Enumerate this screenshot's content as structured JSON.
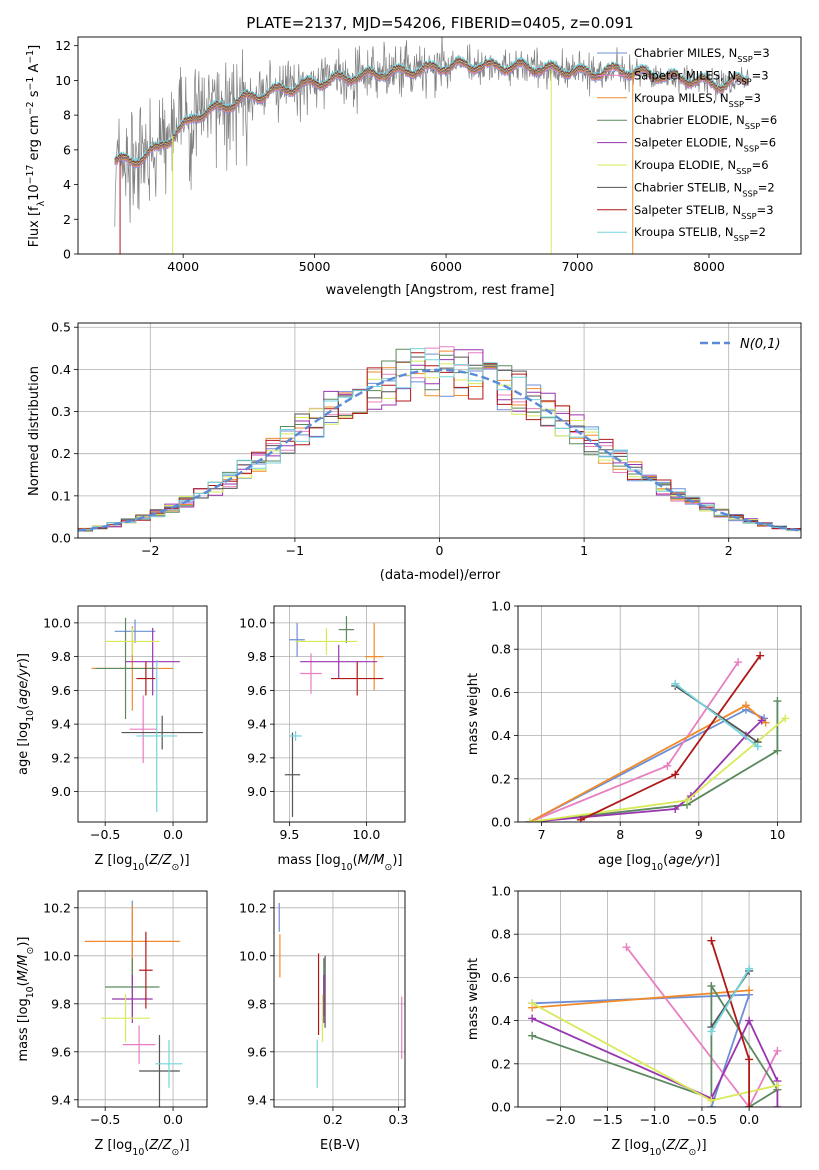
{
  "title": "PLATE=2137, MJD=54206, FIBERID=0405, z=0.091",
  "colors": {
    "Chabrier MILES": "#6c8fd6",
    "Salpeter MILES": "#e87fc1",
    "Kroupa MILES": "#f08a2c",
    "Chabrier ELODIE": "#5b8a5e",
    "Salpeter ELODIE": "#9a35b0",
    "Kroupa ELODIE": "#d8ea5a",
    "Chabrier STELIB": "#555555",
    "Salpeter STELIB": "#b01818",
    "Kroupa STELIB": "#74d4dc",
    "data": "#808080",
    "normal": "#5b8ad8",
    "grid": "#b0b0b0"
  },
  "chart_data": [
    {
      "type": "line",
      "id": "spectrum",
      "title": "PLATE=2137, MJD=54206, FIBERID=0405, z=0.091",
      "xlabel": "wavelength [Angstrom, rest frame]",
      "ylabel": "Flux [f_λ 10^-17 erg cm^-2 s^-1 A^-1]",
      "xlim": [
        3200,
        8700
      ],
      "ylim": [
        0,
        12.5
      ],
      "xticks": [
        4000,
        5000,
        6000,
        7000,
        8000
      ],
      "yticks": [
        0,
        2,
        4,
        6,
        8,
        10,
        12
      ],
      "grid": false,
      "legend_position": "right",
      "legend": [
        "Chabrier MILES, N_SSP=3",
        "Salpeter MILES, N_SSP=3",
        "Kroupa MILES, N_SSP=3",
        "Chabrier ELODIE, N_SSP=6",
        "Salpeter ELODIE, N_SSP=6",
        "Kroupa ELODIE, N_SSP=6",
        "Chabrier STELIB, N_SSP=2",
        "Salpeter STELIB, N_SSP=3",
        "Kroupa STELIB, N_SSP=2"
      ],
      "continuum": {
        "x": [
          3480,
          3600,
          3800,
          3950,
          4100,
          4300,
          4500,
          4700,
          4900,
          5100,
          5300,
          5500,
          5700,
          5900,
          6100,
          6300,
          6500,
          6700,
          6900,
          7100,
          7300,
          7500,
          7700,
          7900,
          8100,
          8300
        ],
        "y": [
          5.4,
          5.3,
          6.0,
          7.0,
          8.0,
          8.5,
          9.0,
          9.4,
          9.7,
          10.0,
          10.2,
          10.4,
          10.5,
          10.7,
          10.9,
          10.8,
          10.8,
          10.7,
          10.6,
          10.4,
          10.6,
          10.4,
          10.2,
          10.0,
          9.7,
          10.2
        ]
      }
    },
    {
      "type": "histogram",
      "id": "residuals",
      "xlabel": "(data-model)/error",
      "ylabel": "Normed distribution",
      "xlim": [
        -2.5,
        2.5
      ],
      "ylim": [
        0,
        0.51
      ],
      "xticks": [
        -2,
        -1,
        0,
        1,
        2
      ],
      "yticks": [
        0.0,
        0.1,
        0.2,
        0.3,
        0.4,
        0.5
      ],
      "grid": true,
      "bin_width": 0.1,
      "normal_label": "N(0,1)",
      "legend_position": "top-right"
    },
    {
      "type": "scatter",
      "id": "age-vs-Z",
      "xlabel": "Z [log10(Z/Z☉)]",
      "ylabel": "age [log10(age/yr)]",
      "xlim": [
        -0.7,
        0.25
      ],
      "ylim": [
        8.82,
        10.1
      ],
      "xticks": [
        -0.5,
        0.0
      ],
      "yticks": [
        9.0,
        9.2,
        9.4,
        9.6,
        9.8,
        10.0
      ],
      "grid": true,
      "errorbars": [
        {
          "model": "Chabrier MILES",
          "x": -0.28,
          "xerr": 0.15,
          "y": 9.95,
          "yerr": 0.07
        },
        {
          "model": "Salpeter MILES",
          "x": -0.22,
          "xerr": 0.1,
          "y": 9.37,
          "yerr": 0.2
        },
        {
          "model": "Kroupa MILES",
          "x": -0.3,
          "xerr": 0.3,
          "y": 9.73,
          "yerr": 0.25
        },
        {
          "model": "Chabrier ELODIE",
          "x": -0.35,
          "xerr": 0.22,
          "y": 9.73,
          "yerr": 0.3
        },
        {
          "model": "Salpeter ELODIE",
          "x": -0.15,
          "xerr": 0.2,
          "y": 9.77,
          "yerr": 0.2
        },
        {
          "model": "Kroupa ELODIE",
          "x": -0.3,
          "xerr": 0.2,
          "y": 9.89,
          "yerr": 0.08
        },
        {
          "model": "Chabrier STELIB",
          "x": -0.08,
          "xerr": 0.3,
          "y": 9.35,
          "yerr": 0.1
        },
        {
          "model": "Salpeter STELIB",
          "x": -0.2,
          "xerr": 0.07,
          "y": 9.67,
          "yerr": 0.1
        },
        {
          "model": "Kroupa STELIB",
          "x": -0.12,
          "xerr": 0.15,
          "y": 9.33,
          "yerr": 0.45
        }
      ]
    },
    {
      "type": "scatter",
      "id": "age-vs-mass",
      "xlabel": "mass [log10(M/M☉)]",
      "xlim": [
        9.4,
        10.25
      ],
      "ylim": [
        8.82,
        10.1
      ],
      "xticks": [
        9.5,
        10.0
      ],
      "yticks": [
        9.0,
        9.2,
        9.4,
        9.6,
        9.8,
        10.0
      ],
      "grid": true,
      "errorbars": [
        {
          "model": "Chabrier MILES",
          "x": 9.55,
          "xerr": 0.05,
          "y": 9.9,
          "yerr": 0.1
        },
        {
          "model": "Salpeter MILES",
          "x": 9.64,
          "xerr": 0.07,
          "y": 9.7,
          "yerr": 0.12
        },
        {
          "model": "Kroupa MILES",
          "x": 10.05,
          "xerr": 0.06,
          "y": 9.8,
          "yerr": 0.2
        },
        {
          "model": "Chabrier ELODIE",
          "x": 9.87,
          "xerr": 0.05,
          "y": 9.96,
          "yerr": 0.08
        },
        {
          "model": "Salpeter ELODIE",
          "x": 9.82,
          "xerr": 0.25,
          "y": 9.77,
          "yerr": 0.1
        },
        {
          "model": "Kroupa ELODIE",
          "x": 9.74,
          "xerr": 0.2,
          "y": 9.89,
          "yerr": 0.08
        },
        {
          "model": "Chabrier STELIB",
          "x": 9.52,
          "xerr": 0.05,
          "y": 9.1,
          "yerr": 0.25
        },
        {
          "model": "Salpeter STELIB",
          "x": 9.94,
          "xerr": 0.17,
          "y": 9.67,
          "yerr": 0.1
        },
        {
          "model": "Kroupa STELIB",
          "x": 9.54,
          "xerr": 0.04,
          "y": 9.33,
          "yerr": 0.03
        }
      ]
    },
    {
      "type": "line",
      "id": "weight-vs-age",
      "xlabel": "age [log10(age/yr)]",
      "ylabel": "mass weight",
      "xlim": [
        6.7,
        10.3
      ],
      "ylim": [
        0,
        1.0
      ],
      "xticks": [
        7,
        8,
        9,
        10
      ],
      "yticks": [
        0.0,
        0.2,
        0.4,
        0.6,
        0.8,
        1.0
      ],
      "grid": true,
      "series": [
        {
          "model": "Chabrier MILES",
          "x": [
            6.85,
            9.6,
            9.83
          ],
          "y": [
            0.0,
            0.52,
            0.48
          ]
        },
        {
          "model": "Salpeter MILES",
          "x": [
            6.85,
            8.6,
            9.5
          ],
          "y": [
            0.0,
            0.26,
            0.74
          ]
        },
        {
          "model": "Kroupa MILES",
          "x": [
            6.85,
            9.6,
            9.85
          ],
          "y": [
            0.0,
            0.54,
            0.46
          ]
        },
        {
          "model": "Chabrier ELODIE",
          "x": [
            6.85,
            8.85,
            10.0,
            10.0
          ],
          "y": [
            0.0,
            0.08,
            0.33,
            0.56
          ]
        },
        {
          "model": "Salpeter ELODIE",
          "x": [
            6.85,
            8.7,
            8.9,
            9.6,
            9.8
          ],
          "y": [
            0.0,
            0.06,
            0.12,
            0.4,
            0.47
          ]
        },
        {
          "model": "Kroupa ELODIE",
          "x": [
            6.85,
            8.85,
            10.1
          ],
          "y": [
            0.0,
            0.1,
            0.48
          ]
        },
        {
          "model": "Chabrier STELIB",
          "x": [
            8.7,
            9.75
          ],
          "y": [
            0.63,
            0.37
          ]
        },
        {
          "model": "Salpeter STELIB",
          "x": [
            7.5,
            8.7,
            9.78
          ],
          "y": [
            0.01,
            0.22,
            0.77
          ]
        },
        {
          "model": "Kroupa STELIB",
          "x": [
            8.7,
            9.75
          ],
          "y": [
            0.64,
            0.35
          ]
        }
      ]
    },
    {
      "type": "scatter",
      "id": "mass-vs-Z",
      "xlabel": "Z [log10(Z/Z☉)]",
      "ylabel": "mass [log10(M/M☉)]",
      "xlim": [
        -0.7,
        0.25
      ],
      "ylim": [
        9.37,
        10.27
      ],
      "xticks": [
        -0.5,
        0.0
      ],
      "yticks": [
        9.4,
        9.6,
        9.8,
        10.0,
        10.2
      ],
      "grid": true,
      "errorbars": [
        {
          "model": "Chabrier MILES",
          "x": -0.3,
          "xerr": 0.0,
          "y": 10.06,
          "yerr": 0.17
        },
        {
          "model": "Salpeter MILES",
          "x": -0.25,
          "xerr": 0.12,
          "y": 9.63,
          "yerr": 0.08
        },
        {
          "model": "Kroupa MILES",
          "x": -0.3,
          "xerr": 0.35,
          "y": 10.06,
          "yerr": 0.15
        },
        {
          "model": "Chabrier ELODIE",
          "x": -0.3,
          "xerr": 0.2,
          "y": 9.87,
          "yerr": 0.12
        },
        {
          "model": "Salpeter ELODIE",
          "x": -0.3,
          "xerr": 0.15,
          "y": 9.82,
          "yerr": 0.1
        },
        {
          "model": "Kroupa ELODIE",
          "x": -0.35,
          "xerr": 0.18,
          "y": 9.74,
          "yerr": 0.1
        },
        {
          "model": "Chabrier STELIB",
          "x": -0.1,
          "xerr": 0.15,
          "y": 9.52,
          "yerr": 0.15
        },
        {
          "model": "Salpeter STELIB",
          "x": -0.2,
          "xerr": 0.05,
          "y": 9.94,
          "yerr": 0.16
        },
        {
          "model": "Kroupa STELIB",
          "x": -0.03,
          "xerr": 0.1,
          "y": 9.55,
          "yerr": 0.1
        }
      ]
    },
    {
      "type": "scatter",
      "id": "mass-vs-EBV",
      "xlabel": "E(B-V)",
      "xlim": [
        0.11,
        0.31
      ],
      "ylim": [
        9.37,
        10.27
      ],
      "xticks": [
        0.2,
        0.3
      ],
      "yticks": [
        9.4,
        9.6,
        9.8,
        10.0,
        10.2
      ],
      "grid": true,
      "errorbars": [
        {
          "model": "Chabrier MILES",
          "x": 0.118,
          "y": 10.16,
          "yerr": 0.06
        },
        {
          "model": "Salpeter MILES",
          "x": 0.305,
          "y": 9.7,
          "yerr": 0.13
        },
        {
          "model": "Kroupa MILES",
          "x": 0.119,
          "y": 10.0,
          "yerr": 0.09
        },
        {
          "model": "Chabrier ELODIE",
          "x": 0.186,
          "y": 9.87,
          "yerr": 0.12
        },
        {
          "model": "Salpeter ELODIE",
          "x": 0.186,
          "y": 9.82,
          "yerr": 0.1
        },
        {
          "model": "Kroupa ELODIE",
          "x": 0.184,
          "y": 9.74,
          "yerr": 0.1
        },
        {
          "model": "Chabrier STELIB",
          "x": 0.188,
          "y": 9.85,
          "yerr": 0.15
        },
        {
          "model": "Salpeter STELIB",
          "x": 0.178,
          "y": 9.84,
          "yerr": 0.17
        },
        {
          "model": "Kroupa STELIB",
          "x": 0.176,
          "y": 9.55,
          "yerr": 0.1
        }
      ]
    },
    {
      "type": "line",
      "id": "weight-vs-Z",
      "xlabel": "Z [log10(Z/Z☉)]",
      "ylabel": "mass weight",
      "xlim": [
        -2.45,
        0.55
      ],
      "ylim": [
        0,
        1.0
      ],
      "xticks": [
        -2.0,
        -1.5,
        -1.0,
        -0.5,
        0.0
      ],
      "yticks": [
        0.0,
        0.2,
        0.4,
        0.6,
        0.8,
        1.0
      ],
      "grid": true,
      "series": [
        {
          "model": "Chabrier MILES",
          "x": [
            -2.3,
            0.0,
            -0.4
          ],
          "y": [
            0.48,
            0.52,
            0.0
          ]
        },
        {
          "model": "Salpeter MILES",
          "x": [
            -1.3,
            0.0,
            0.3
          ],
          "y": [
            0.74,
            0.0,
            0.26
          ]
        },
        {
          "model": "Kroupa MILES",
          "x": [
            -2.3,
            0.0
          ],
          "y": [
            0.46,
            0.54
          ]
        },
        {
          "model": "Chabrier ELODIE",
          "x": [
            -2.3,
            -0.4,
            -0.4,
            0.3,
            0.0
          ],
          "y": [
            0.33,
            0.04,
            0.56,
            0.08,
            0.0
          ]
        },
        {
          "model": "Salpeter ELODIE",
          "x": [
            -2.3,
            -0.4,
            0.0,
            0.3,
            0.3
          ],
          "y": [
            0.41,
            0.04,
            0.4,
            0.12,
            0.0
          ]
        },
        {
          "model": "Kroupa ELODIE",
          "x": [
            -2.3,
            -0.4,
            0.3
          ],
          "y": [
            0.48,
            0.03,
            0.1
          ]
        },
        {
          "model": "Chabrier STELIB",
          "x": [
            -0.4,
            0.0
          ],
          "y": [
            0.37,
            0.63
          ]
        },
        {
          "model": "Salpeter STELIB",
          "x": [
            -0.4,
            0.0,
            0.0
          ],
          "y": [
            0.77,
            0.22,
            0.0
          ]
        },
        {
          "model": "Kroupa STELIB",
          "x": [
            -0.4,
            0.0
          ],
          "y": [
            0.35,
            0.64
          ]
        }
      ]
    }
  ]
}
